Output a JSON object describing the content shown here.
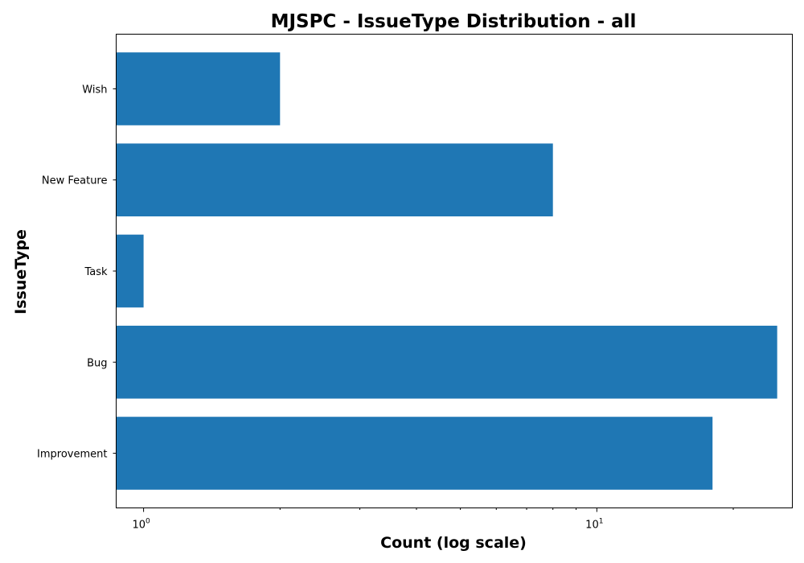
{
  "chart_data": {
    "type": "bar",
    "orientation": "horizontal",
    "title": "MJSPC - IssueType Distribution - all",
    "xlabel": "Count (log scale)",
    "ylabel": "IssueType",
    "x_scale": "log",
    "xlim": [
      0.87,
      27
    ],
    "categories": [
      "Improvement",
      "Bug",
      "Task",
      "New Feature",
      "Wish"
    ],
    "values": [
      18,
      25,
      1,
      8,
      2
    ],
    "x_tick_labels": [
      {
        "value": 1,
        "base": "10",
        "exp": "0"
      },
      {
        "value": 10,
        "base": "10",
        "exp": "1"
      }
    ],
    "bar_color": "#1f77b4",
    "grid": false,
    "legend": false
  }
}
